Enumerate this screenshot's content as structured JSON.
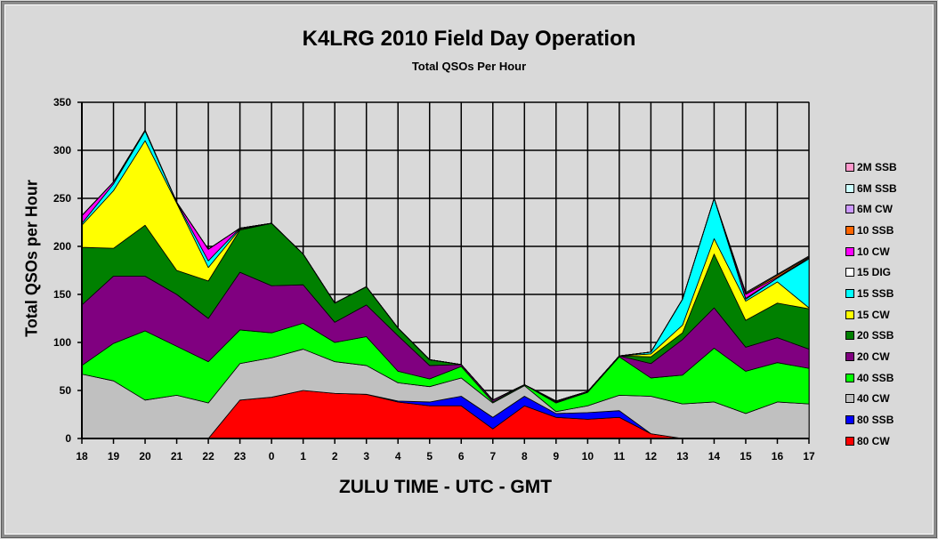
{
  "chart_data": {
    "type": "area",
    "stacked": true,
    "title": "K4LRG 2010 Field Day Operation",
    "subtitle": "Total QSOs Per Hour",
    "xlabel": "ZULU TIME  -  UTC  -  GMT",
    "ylabel": "Total  QSOs  per  Hour",
    "ylim": [
      0,
      350
    ],
    "yticks": [
      0,
      50,
      100,
      150,
      200,
      250,
      300,
      350
    ],
    "grid": true,
    "legend_position": "right",
    "categories": [
      "18",
      "19",
      "20",
      "21",
      "22",
      "23",
      "0",
      "1",
      "2",
      "3",
      "4",
      "5",
      "6",
      "7",
      "8",
      "9",
      "10",
      "11",
      "12",
      "13",
      "14",
      "15",
      "16",
      "17"
    ],
    "series": [
      {
        "name": "80 CW",
        "color": "#ff0000",
        "values": [
          0,
          0,
          0,
          0,
          0,
          40,
          43,
          50,
          47,
          46,
          38,
          34,
          34,
          10,
          34,
          22,
          20,
          22,
          5,
          0,
          0,
          0,
          0,
          0
        ]
      },
      {
        "name": "80 SSB",
        "color": "#0000ff",
        "values": [
          0,
          0,
          0,
          0,
          0,
          0,
          0,
          0,
          0,
          0,
          1,
          4,
          10,
          12,
          10,
          4,
          7,
          7,
          0,
          0,
          0,
          0,
          0,
          0
        ]
      },
      {
        "name": "40 CW",
        "color": "#c0c0c0",
        "values": [
          67,
          60,
          40,
          45,
          37,
          38,
          41,
          43,
          33,
          30,
          19,
          16,
          19,
          15,
          11,
          2,
          7,
          16,
          39,
          36,
          38,
          26,
          38,
          36
        ]
      },
      {
        "name": "40 SSB",
        "color": "#00ff00",
        "values": [
          9,
          39,
          72,
          51,
          43,
          35,
          26,
          27,
          20,
          30,
          12,
          8,
          12,
          1,
          1,
          9,
          14,
          40,
          19,
          30,
          56,
          44,
          41,
          37
        ]
      },
      {
        "name": "20 CW",
        "color": "#800080",
        "values": [
          63,
          70,
          57,
          54,
          45,
          60,
          49,
          40,
          21,
          33,
          37,
          14,
          2,
          2,
          0,
          1,
          1,
          1,
          15,
          37,
          42,
          25,
          26,
          20
        ]
      },
      {
        "name": "20 SSB",
        "color": "#008000",
        "values": [
          60,
          29,
          53,
          25,
          39,
          44,
          65,
          32,
          20,
          19,
          8,
          6,
          0,
          0,
          0,
          1,
          0,
          0,
          7,
          7,
          56,
          28,
          36,
          42
        ]
      },
      {
        "name": "15 CW",
        "color": "#ffff00",
        "values": [
          23,
          60,
          88,
          70,
          14,
          1,
          0,
          0,
          0,
          0,
          0,
          0,
          0,
          0,
          0,
          0,
          0,
          0,
          3,
          8,
          16,
          20,
          22,
          1
        ]
      },
      {
        "name": "15 SSB",
        "color": "#00ffff",
        "values": [
          2,
          7,
          10,
          1,
          7,
          1,
          0,
          0,
          0,
          0,
          0,
          0,
          0,
          0,
          0,
          0,
          0,
          0,
          2,
          27,
          42,
          2,
          4,
          51
        ]
      },
      {
        "name": "15 DIG",
        "color": "#ffffff",
        "values": [
          0,
          0,
          1,
          0,
          0,
          0,
          0,
          0,
          0,
          0,
          0,
          0,
          0,
          0,
          0,
          0,
          0,
          0,
          0,
          0,
          0,
          1,
          0,
          1
        ]
      },
      {
        "name": "10 CW",
        "color": "#ff00ff",
        "values": [
          8,
          2,
          0,
          0,
          12,
          0,
          0,
          0,
          0,
          0,
          0,
          0,
          0,
          0,
          0,
          0,
          0,
          0,
          0,
          0,
          0,
          4,
          1,
          0
        ]
      },
      {
        "name": "10 SSB",
        "color": "#ff6600",
        "values": [
          0,
          0,
          0,
          0,
          0,
          0,
          0,
          0,
          0,
          0,
          0,
          0,
          0,
          0,
          0,
          0,
          0,
          0,
          0,
          0,
          0,
          1,
          2,
          1
        ]
      },
      {
        "name": "6M CW",
        "color": "#cc99ff",
        "values": [
          0,
          0,
          0,
          0,
          0,
          0,
          0,
          0,
          0,
          0,
          0,
          0,
          0,
          0,
          0,
          0,
          0,
          0,
          0,
          0,
          0,
          0,
          0,
          0
        ]
      },
      {
        "name": "6M SSB",
        "color": "#ccffff",
        "values": [
          0,
          0,
          0,
          0,
          0,
          0,
          0,
          0,
          0,
          0,
          0,
          0,
          0,
          0,
          0,
          0,
          0,
          0,
          0,
          0,
          0,
          1,
          1,
          1
        ]
      },
      {
        "name": "2M SSB",
        "color": "#ff99cc",
        "values": [
          0,
          0,
          0,
          0,
          0,
          0,
          0,
          0,
          0,
          0,
          0,
          0,
          0,
          0,
          0,
          0,
          0,
          0,
          0,
          0,
          0,
          0,
          0,
          0
        ]
      }
    ]
  }
}
